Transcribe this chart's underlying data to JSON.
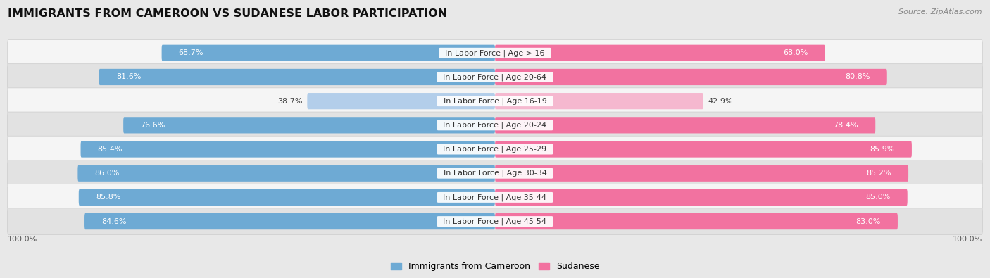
{
  "title": "IMMIGRANTS FROM CAMEROON VS SUDANESE LABOR PARTICIPATION",
  "source": "Source: ZipAtlas.com",
  "categories": [
    "In Labor Force | Age > 16",
    "In Labor Force | Age 20-64",
    "In Labor Force | Age 16-19",
    "In Labor Force | Age 20-24",
    "In Labor Force | Age 25-29",
    "In Labor Force | Age 30-34",
    "In Labor Force | Age 35-44",
    "In Labor Force | Age 45-54"
  ],
  "cameroon_values": [
    68.7,
    81.6,
    38.7,
    76.6,
    85.4,
    86.0,
    85.8,
    84.6
  ],
  "sudanese_values": [
    68.0,
    80.8,
    42.9,
    78.4,
    85.9,
    85.2,
    85.0,
    83.0
  ],
  "cameroon_color": "#6eaad4",
  "cameroon_color_light": "#b3ceea",
  "sudanese_color": "#f272a0",
  "sudanese_color_light": "#f5b8cf",
  "bar_height": 0.68,
  "bg_color": "#e8e8e8",
  "row_bg": "#f5f5f5",
  "row_bg_alt": "#e2e2e2",
  "title_fontsize": 11.5,
  "source_fontsize": 8,
  "cat_fontsize": 8,
  "value_fontsize": 8,
  "legend_fontsize": 9,
  "max_value": 100.0,
  "axis_label": "100.0%"
}
